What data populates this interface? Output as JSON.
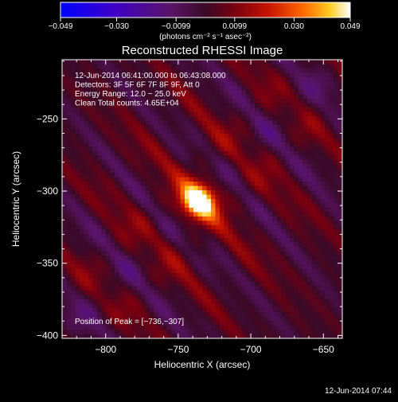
{
  "chart_data": {
    "type": "heatmap",
    "title": "Reconstructed RHESSI Image",
    "xlabel": "Heliocentric X (arcsec)",
    "ylabel": "Heliocentric Y (arcsec)",
    "xlim": [
      -830,
      -637
    ],
    "ylim": [
      -402,
      -209
    ],
    "x_ticks": [
      -800,
      -750,
      -700,
      -650
    ],
    "y_ticks": [
      -250,
      -300,
      -350,
      -400
    ],
    "x_tick_labels": [
      "−800",
      "−750",
      "−700",
      "−650"
    ],
    "y_tick_labels": [
      "−250",
      "−300",
      "−350",
      "−400"
    ],
    "colorbar": {
      "min": -0.049,
      "max": 0.049,
      "ticks": [
        -0.049,
        -0.03,
        -0.0099,
        0.0099,
        0.03,
        0.049
      ],
      "tick_labels": [
        "−0.049",
        "−0.030",
        "−0.0099",
        "0.0099",
        "0.030",
        "0.049"
      ],
      "unit_label": "(photons cm⁻² s⁻¹ asec⁻²)"
    },
    "info_lines": [
      "12-Jun-2014 06:41:00.000 to 06:43:08.000",
      "Detectors: 3F 5F 6F 7F 8F 9F, Att 0",
      "Energy Range: 12.0 − 25.0 keV",
      "Clean     Total counts: 4.65E+04"
    ],
    "peak_label": "Position of Peak = [−736,−307]",
    "peak": {
      "x": -736,
      "y": -307
    },
    "grid": false
  },
  "footer_timestamp": "12-Jun-2014 07:44"
}
